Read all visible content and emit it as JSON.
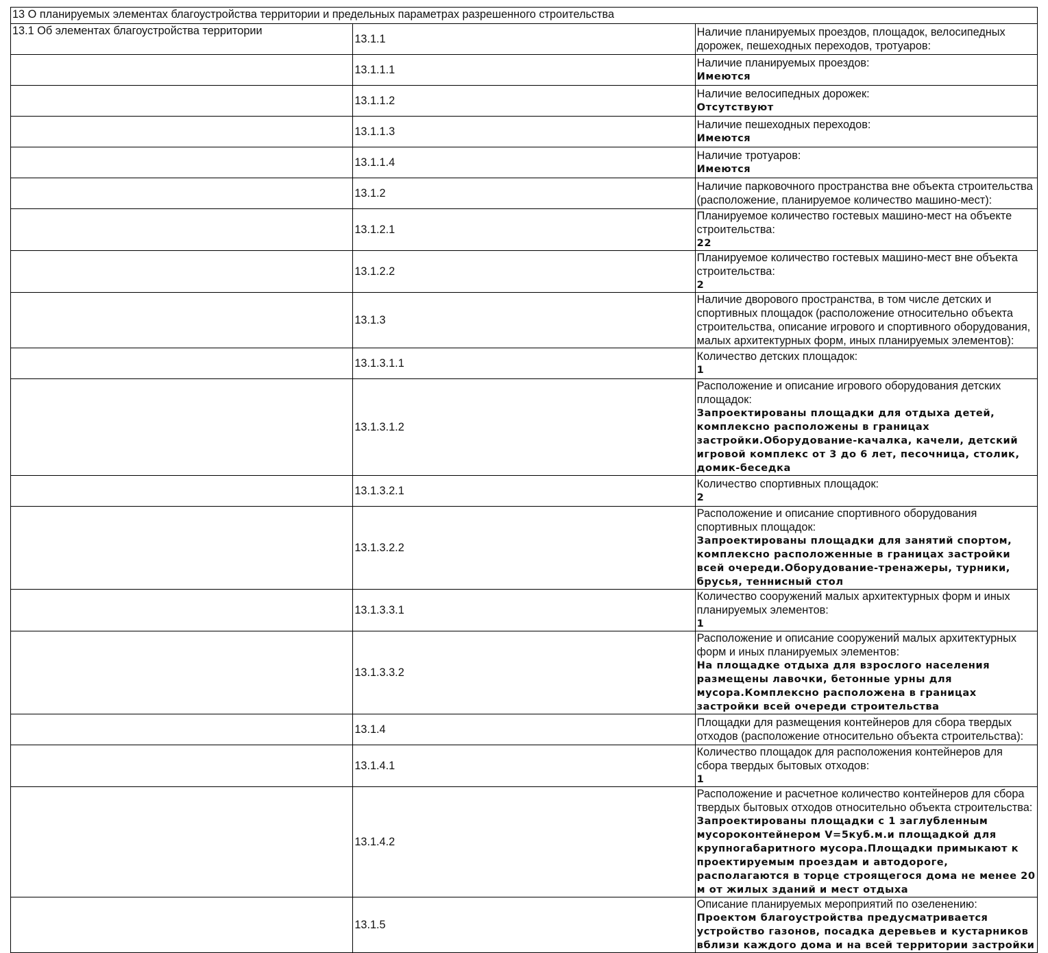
{
  "section_title": "13 О планируемых элементах благоустройства территории и предельных параметрах разрешенного строительства",
  "subsection_title": "13.1 Об элементах благоустройства территории",
  "rows": [
    {
      "num": "13.1.1",
      "label": "Наличие планируемых проездов, площадок, велосипедных дорожек, пешеходных переходов, тротуаров:",
      "value": ""
    },
    {
      "num": "13.1.1.1",
      "label": "Наличие планируемых проездов:",
      "value": "Имеются"
    },
    {
      "num": "13.1.1.2",
      "label": "Наличие велосипедных дорожек:",
      "value": "Отсутствуют"
    },
    {
      "num": "13.1.1.3",
      "label": "Наличие пешеходных переходов:",
      "value": "Имеются"
    },
    {
      "num": "13.1.1.4",
      "label": "Наличие тротуаров:",
      "value": "Имеются"
    },
    {
      "num": "13.1.2",
      "label": "Наличие парковочного пространства вне объекта строительства (расположение, планируемое количество машино-мест):",
      "value": ""
    },
    {
      "num": "13.1.2.1",
      "label": "Планируемое количество гостевых машино-мест на объекте строительства:",
      "value": "22"
    },
    {
      "num": "13.1.2.2",
      "label": "Планируемое количество гостевых машино-мест вне объекта строительства:",
      "value": "2"
    },
    {
      "num": "13.1.3",
      "label": "Наличие дворового пространства, в том числе детских и спортивных площадок (расположение относительно объекта строительства, описание игрового и спортивного оборудования, малых архитектурных форм, иных планируемых элементов):",
      "value": ""
    },
    {
      "num": "13.1.3.1.1",
      "label": "Количество детских площадок:",
      "value": "1"
    },
    {
      "num": "13.1.3.1.2",
      "label": "Расположение и описание игрового оборудования детских площадок:",
      "value": "Запроектированы площадки для отдыха детей, комплексно расположены в границах застройки.Оборудование-качалка, качели, детский игровой комплекс от 3 до 6 лет, песочница, столик, домик-беседка"
    },
    {
      "num": "13.1.3.2.1",
      "label": "Количество спортивных площадок:",
      "value": "2"
    },
    {
      "num": "13.1.3.2.2",
      "label": "Расположение и описание спортивного оборудования спортивных площадок:",
      "value": "Запроектированы площадки для занятий спортом, комплексно расположенные в границах застройки всей очереди.Оборудование-тренажеры, турники, брусья, теннисный стол"
    },
    {
      "num": "13.1.3.3.1",
      "label": "Количество сооружений малых архитектурных форм и иных планируемых элементов:",
      "value": "1"
    },
    {
      "num": "13.1.3.3.2",
      "label": "Расположение и описание сооружений малых архитектурных форм и иных планируемых элементов:",
      "value": "На площадке отдыха для взрослого населения размещены лавочки, бетонные урны для мусора.Комплексно расположена в границах застройки всей очереди строительства"
    },
    {
      "num": "13.1.4",
      "label": "Площадки для размещения контейнеров для сбора твердых отходов (расположение относительно объекта строительства):",
      "value": ""
    },
    {
      "num": "13.1.4.1",
      "label": "Количество площадок для расположения контейнеров для сбора твердых бытовых отходов:",
      "value": "1"
    },
    {
      "num": "13.1.4.2",
      "label": "Расположение и расчетное количество контейнеров для сбора твердых бытовых отходов относительно объекта строительства:",
      "value": "Запроектированы площадки с 1 заглубленным мусороконтейнером V=5куб.м.и площадкой для крупногабаритного мусора.Площадки примыкают к проектируемым проездам и автодороге, располагаются в торце строящегося дома не менее 20 м от жилых зданий и мест отдыха"
    },
    {
      "num": "13.1.5",
      "label": "Описание планируемых мероприятий по озеленению:",
      "value": "Проектом благоустройства предусматривается устройство газонов, посадка деревьев и кустарников вблизи каждого дома и на всей территории застройки"
    }
  ]
}
